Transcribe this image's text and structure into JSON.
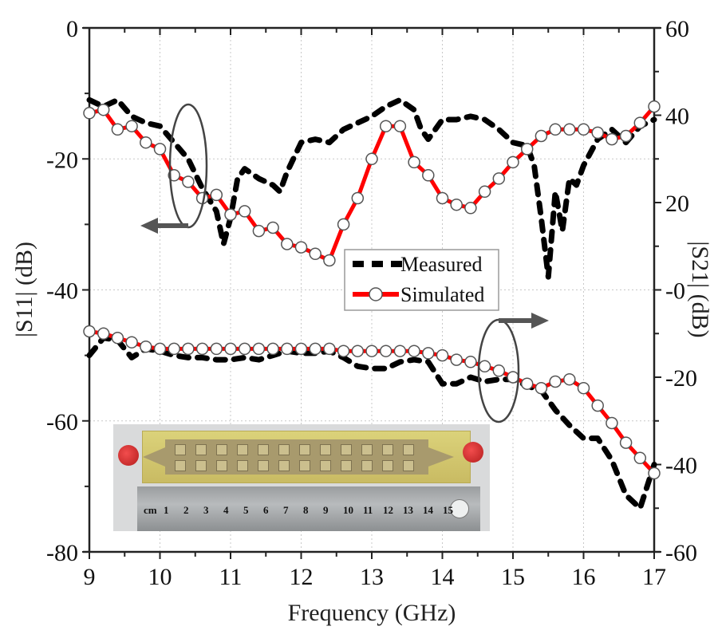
{
  "chart_data": {
    "type": "line",
    "title": "",
    "xlabel": "Frequency (GHz)",
    "ylabel_left": "|S11| (dB)",
    "ylabel_right": "|S21| (dB)",
    "xlim": [
      9,
      17
    ],
    "ylim_left": [
      -80,
      0
    ],
    "ylim_right": [
      -60,
      60
    ],
    "x_ticks": [
      "9",
      "10",
      "11",
      "12",
      "13",
      "14",
      "15",
      "16",
      "17"
    ],
    "y_ticks_left": [
      "0",
      "-20",
      "-40",
      "-60",
      "-80"
    ],
    "y_ticks_right": [
      "60",
      "40",
      "20",
      "-0",
      "-20",
      "-40",
      "-60"
    ],
    "grid": true,
    "legend": {
      "placement": "center",
      "entries": [
        {
          "label": "Measured",
          "style": "dashed",
          "color": "#000000"
        },
        {
          "label": "Simulated",
          "style": "line-circle",
          "color": "#ff0000"
        }
      ]
    },
    "annotations": [
      {
        "type": "ellipse-arrow",
        "target": "S11 curves",
        "axis": "left",
        "direction": "left"
      },
      {
        "type": "ellipse-arrow",
        "target": "S21 curves",
        "axis": "right",
        "direction": "right"
      },
      {
        "type": "inset-photo",
        "description": "fabricated PCB prototype with SMA connectors above a metal ruler",
        "ruler_labels": [
          "cm",
          "1",
          "2",
          "3",
          "4",
          "5",
          "6",
          "7",
          "8",
          "9",
          "10",
          "11",
          "12",
          "13",
          "14",
          "15"
        ]
      }
    ],
    "series": [
      {
        "name": "S11 Measured",
        "legend": "Measured",
        "axis": "left",
        "style": "dashed",
        "color": "#000000",
        "x": [
          9.0,
          9.2,
          9.4,
          9.6,
          9.8,
          10.0,
          10.2,
          10.4,
          10.6,
          10.8,
          10.9,
          11.0,
          11.1,
          11.2,
          11.4,
          11.6,
          11.7,
          11.8,
          12.0,
          12.2,
          12.4,
          12.6,
          12.8,
          13.0,
          13.2,
          13.4,
          13.6,
          13.7,
          13.8,
          14.0,
          14.2,
          14.4,
          14.6,
          14.8,
          15.0,
          15.2,
          15.3,
          15.4,
          15.5,
          15.6,
          15.7,
          15.8,
          15.9,
          16.0,
          16.2,
          16.4,
          16.6,
          16.8,
          17.0
        ],
        "y": [
          -11,
          -12,
          -11,
          -13.5,
          -14.5,
          -15,
          -17.5,
          -20,
          -24.5,
          -28,
          -33,
          -29,
          -23,
          -21.5,
          -23,
          -24,
          -25,
          -22,
          -17.5,
          -17,
          -17.5,
          -15.5,
          -14.5,
          -13.5,
          -12,
          -11,
          -12.5,
          -15.5,
          -17,
          -14,
          -14,
          -13.5,
          -14,
          -15.5,
          -17.5,
          -18,
          -21,
          -29,
          -38,
          -25,
          -31,
          -23,
          -24,
          -21,
          -17,
          -15.5,
          -17.5,
          -15,
          -14
        ]
      },
      {
        "name": "S11 Simulated",
        "legend": "Simulated",
        "axis": "left",
        "style": "line-circle",
        "color": "#ff0000",
        "x": [
          9.0,
          9.2,
          9.4,
          9.6,
          9.8,
          10.0,
          10.2,
          10.4,
          10.6,
          10.8,
          11.0,
          11.2,
          11.4,
          11.6,
          11.8,
          12.0,
          12.2,
          12.4,
          12.6,
          12.8,
          13.0,
          13.2,
          13.4,
          13.6,
          13.8,
          14.0,
          14.2,
          14.4,
          14.6,
          14.8,
          15.0,
          15.2,
          15.4,
          15.6,
          15.8,
          16.0,
          16.2,
          16.4,
          16.6,
          16.8,
          17.0
        ],
        "y": [
          -13,
          -12.5,
          -15.5,
          -15,
          -17.5,
          -18.5,
          -22.5,
          -23.5,
          -26,
          -25.5,
          -28.5,
          -28,
          -31,
          -30.5,
          -33,
          -33.5,
          -34.5,
          -35.5,
          -30,
          -26,
          -20,
          -15,
          -15,
          -20.5,
          -22.5,
          -26,
          -27,
          -27.5,
          -25,
          -23,
          -20.5,
          -18.5,
          -16.5,
          -15.5,
          -15.5,
          -15.5,
          -16,
          -17,
          -16.5,
          -14.5,
          -12
        ]
      },
      {
        "name": "S21 Measured",
        "legend": "Measured",
        "axis": "right",
        "style": "dashed",
        "color": "#000000",
        "x": [
          9.0,
          9.2,
          9.4,
          9.6,
          9.8,
          10.0,
          10.2,
          10.4,
          10.6,
          10.8,
          11.0,
          11.2,
          11.4,
          11.6,
          11.8,
          12.0,
          12.2,
          12.4,
          12.6,
          12.8,
          13.0,
          13.2,
          13.4,
          13.6,
          13.8,
          14.0,
          14.2,
          14.4,
          14.6,
          14.8,
          15.0,
          15.2,
          15.4,
          15.6,
          15.8,
          16.0,
          16.2,
          16.4,
          16.6,
          16.8,
          17.0
        ],
        "y": [
          -15,
          -11,
          -11.5,
          -15.5,
          -13.5,
          -14,
          -15,
          -15.5,
          -15.5,
          -16,
          -16,
          -15.5,
          -16,
          -15,
          -14,
          -14.5,
          -14.5,
          -14,
          -15.5,
          -17.5,
          -18,
          -18,
          -16.5,
          -16,
          -16.5,
          -21.5,
          -21.5,
          -20,
          -21,
          -20.5,
          -20.5,
          -22,
          -23,
          -27.5,
          -31,
          -34,
          -34,
          -39,
          -47,
          -50,
          -40
        ]
      },
      {
        "name": "S21 Simulated",
        "legend": "Simulated",
        "axis": "right",
        "style": "line-circle",
        "color": "#ff0000",
        "x": [
          9.0,
          9.2,
          9.4,
          9.6,
          9.8,
          10.0,
          10.2,
          10.4,
          10.6,
          10.8,
          11.0,
          11.2,
          11.4,
          11.6,
          11.8,
          12.0,
          12.2,
          12.4,
          12.6,
          12.8,
          13.0,
          13.2,
          13.4,
          13.6,
          13.8,
          14.0,
          14.2,
          14.4,
          14.6,
          14.8,
          15.0,
          15.2,
          15.4,
          15.6,
          15.8,
          16.0,
          16.2,
          16.4,
          16.6,
          16.8,
          17.0
        ],
        "y": [
          -9.5,
          -10,
          -11,
          -12,
          -13,
          -13.5,
          -13.5,
          -13.5,
          -13.5,
          -13.5,
          -13.5,
          -13.5,
          -13.5,
          -13.5,
          -13.5,
          -13.5,
          -13.5,
          -13.5,
          -14,
          -14,
          -14,
          -14,
          -14,
          -14,
          -14.5,
          -15,
          -16,
          -16.5,
          -17.5,
          -18.5,
          -20,
          -21.5,
          -22.5,
          -21,
          -20.5,
          -22.5,
          -26.5,
          -30.5,
          -35,
          -38.5,
          -42
        ]
      }
    ]
  }
}
